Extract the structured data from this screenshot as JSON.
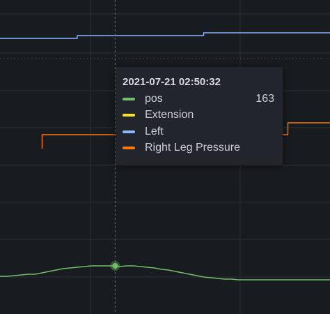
{
  "colors": {
    "background": "#181b1f",
    "grid": "#2c3035",
    "crosshair": "#5a6a7a",
    "pos": "#73bf69",
    "extension": "#fade2a",
    "left": "#8ab8ff",
    "right_leg_pressure": "#ff780a"
  },
  "tooltip": {
    "time": "2021-07-21 02:50:32",
    "rows": [
      {
        "name": "pos",
        "value": "163",
        "color": "#73bf69"
      },
      {
        "name": "Extension",
        "value": "",
        "color": "#fade2a"
      },
      {
        "name": "Left",
        "value": "",
        "color": "#8ab8ff"
      },
      {
        "name": "Right Leg Pressure",
        "value": "",
        "color": "#ff780a"
      }
    ]
  },
  "chart_data": {
    "type": "line",
    "title": "",
    "xlabel": "",
    "ylabel": "",
    "grid": true,
    "hover_index": 16,
    "x": [
      0,
      1,
      2,
      3,
      4,
      5,
      6,
      7,
      8,
      9,
      10,
      11,
      12,
      13,
      14,
      15,
      16,
      17,
      18,
      19,
      20,
      21,
      22,
      23,
      24,
      25,
      26,
      27,
      28,
      29,
      30,
      31,
      32,
      33,
      34,
      35,
      36,
      37,
      38,
      39,
      40,
      41,
      42,
      43,
      44,
      45,
      46,
      47
    ],
    "series": [
      {
        "name": "pos",
        "color": "#73bf69",
        "values": [
          148,
          148,
          149,
          150,
          151,
          151,
          153,
          155,
          157,
          159,
          160,
          161,
          162,
          163,
          163,
          163,
          163,
          162,
          163,
          163,
          162,
          161,
          160,
          158,
          157,
          155,
          153,
          151,
          149,
          147,
          146,
          145,
          144,
          144,
          143,
          143,
          143,
          143,
          143,
          143,
          143,
          143,
          143,
          143,
          143,
          143,
          143,
          143
        ]
      },
      {
        "name": "Left",
        "color": "#8ab8ff",
        "values": [
          300,
          300,
          300,
          300,
          300,
          300,
          300,
          300,
          300,
          300,
          300,
          301,
          301,
          301,
          301,
          301,
          301,
          301,
          301,
          301,
          301,
          301,
          301,
          301,
          301,
          301,
          301,
          301,
          301,
          302,
          302,
          302,
          302,
          302,
          302,
          302,
          302,
          302,
          302,
          302,
          302,
          302,
          302,
          302,
          302,
          302,
          302,
          302
        ]
      },
      {
        "name": "Right Leg Pressure",
        "color": "#ff780a",
        "values": [
          null,
          null,
          null,
          null,
          null,
          null,
          250,
          250,
          250,
          250,
          250,
          250,
          250,
          250,
          250,
          250,
          250,
          250,
          250,
          250,
          250,
          250,
          250,
          250,
          250,
          250,
          250,
          250,
          250,
          250,
          250,
          250,
          250,
          250,
          250,
          250,
          250,
          250,
          250,
          250,
          250,
          252,
          252,
          252,
          252,
          252,
          252,
          252
        ]
      }
    ]
  }
}
